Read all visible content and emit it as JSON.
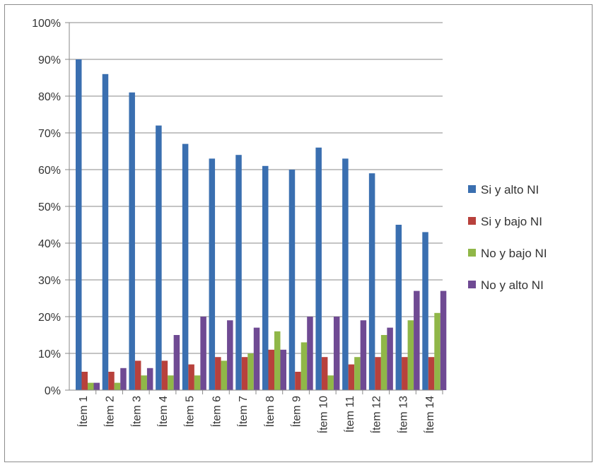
{
  "chart_data": {
    "type": "bar",
    "categories": [
      "Ítem 1",
      "Ítem 2",
      "Ítem 3",
      "Ítem 4",
      "Ítem 5",
      "Ítem 6",
      "Ítem 7",
      "Ítem 8",
      "Ítem 9",
      "Ítem 10",
      "Ítem 11",
      "Ítem 12",
      "Ítem 13",
      "Ítem 14"
    ],
    "series": [
      {
        "name": "Si y alto NI",
        "color": "#3a6fb0",
        "values": [
          90,
          86,
          81,
          72,
          67,
          63,
          64,
          61,
          60,
          66,
          63,
          59,
          45,
          43
        ]
      },
      {
        "name": "Si y bajo NI",
        "color": "#b8413c",
        "values": [
          5,
          5,
          8,
          8,
          7,
          9,
          9,
          11,
          5,
          9,
          7,
          9,
          9,
          9
        ]
      },
      {
        "name": "No y bajo NI",
        "color": "#90b748",
        "values": [
          2,
          2,
          4,
          4,
          4,
          8,
          10,
          16,
          13,
          4,
          9,
          15,
          19,
          21
        ]
      },
      {
        "name": "No y alto NI",
        "color": "#6f4a93",
        "values": [
          2,
          6,
          6,
          15,
          20,
          19,
          17,
          11,
          20,
          20,
          19,
          17,
          27,
          27
        ]
      }
    ],
    "ylim": [
      0,
      100
    ],
    "yticks": [
      "0%",
      "10%",
      "20%",
      "30%",
      "40%",
      "50%",
      "60%",
      "70%",
      "80%",
      "90%",
      "100%"
    ],
    "grid": true,
    "legend_position": "right",
    "title": "",
    "xlabel": "",
    "ylabel": ""
  }
}
